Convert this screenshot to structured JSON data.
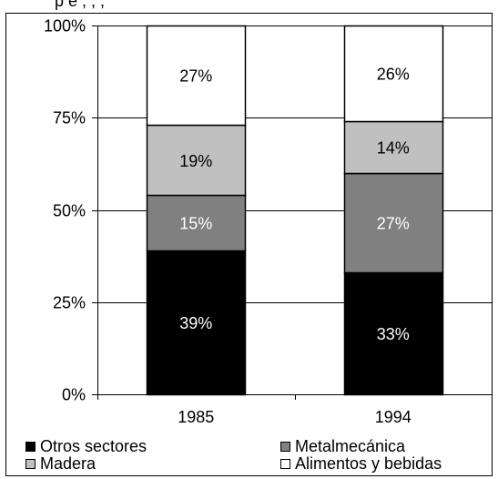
{
  "page_title_fragment": "p e       ,        ,          ,",
  "chart_data": {
    "type": "bar",
    "stacked": true,
    "percent_stacked": true,
    "categories": [
      "1985",
      "1994"
    ],
    "series": [
      {
        "name": "Otros sectores",
        "values": [
          39,
          33
        ],
        "color": "#000000",
        "label_color": "#ffffff"
      },
      {
        "name": "Metalmecánica",
        "values": [
          15,
          27
        ],
        "color": "#808080",
        "label_color": "#ffffff"
      },
      {
        "name": "Madera",
        "values": [
          19,
          14
        ],
        "color": "#c0c0c0",
        "label_color": "#000000"
      },
      {
        "name": "Alimentos y bebidas",
        "values": [
          27,
          26
        ],
        "color": "#ffffff",
        "label_color": "#000000"
      }
    ],
    "data_labels": [
      [
        "39%",
        "33%"
      ],
      [
        "15%",
        "27%"
      ],
      [
        "19%",
        "14%"
      ],
      [
        "27%",
        "26%"
      ]
    ],
    "ylim": [
      0,
      100
    ],
    "yticks": [
      "0%",
      "25%",
      "50%",
      "75%",
      "100%"
    ],
    "ytick_values": [
      0,
      25,
      50,
      75,
      100
    ],
    "grid": true,
    "legend_position": "bottom",
    "title": "",
    "xlabel": "",
    "ylabel": ""
  }
}
